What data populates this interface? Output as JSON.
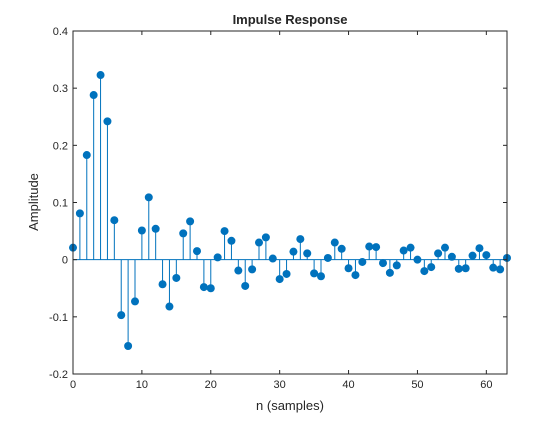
{
  "chart_data": {
    "type": "stem",
    "title": "Impulse Response",
    "xlabel": "n (samples)",
    "ylabel": "Amplitude",
    "xlim": [
      0,
      63
    ],
    "ylim": [
      -0.2,
      0.4
    ],
    "xticks": [
      0,
      10,
      20,
      30,
      40,
      50,
      60
    ],
    "yticks": [
      -0.2,
      -0.1,
      0,
      0.1,
      0.2,
      0.3,
      0.4
    ],
    "ytick_labels": [
      "-0.2",
      "-0.1",
      "0",
      "0.1",
      "0.2",
      "0.3",
      "0.4"
    ],
    "grid": false,
    "box": true,
    "color": "#0072BD",
    "baseline": 0,
    "x": [
      0,
      1,
      2,
      3,
      4,
      5,
      6,
      7,
      8,
      9,
      10,
      11,
      12,
      13,
      14,
      15,
      16,
      17,
      18,
      19,
      20,
      21,
      22,
      23,
      24,
      25,
      26,
      27,
      28,
      29,
      30,
      31,
      32,
      33,
      34,
      35,
      36,
      37,
      38,
      39,
      40,
      41,
      42,
      43,
      44,
      45,
      46,
      47,
      48,
      49,
      50,
      51,
      52,
      53,
      54,
      55,
      56,
      57,
      58,
      59,
      60,
      61,
      62,
      63
    ],
    "values": [
      0.021,
      0.081,
      0.183,
      0.288,
      0.323,
      0.242,
      0.069,
      -0.097,
      -0.151,
      -0.073,
      0.051,
      0.109,
      0.054,
      -0.043,
      -0.082,
      -0.032,
      0.046,
      0.067,
      0.015,
      -0.048,
      -0.05,
      0.004,
      0.05,
      0.033,
      -0.019,
      -0.046,
      -0.017,
      0.03,
      0.039,
      0.002,
      -0.034,
      -0.025,
      0.014,
      0.036,
      0.011,
      -0.024,
      -0.029,
      0.003,
      0.03,
      0.019,
      -0.015,
      -0.027,
      -0.004,
      0.023,
      0.022,
      -0.006,
      -0.023,
      -0.01,
      0.016,
      0.021,
      0.0,
      -0.02,
      -0.013,
      0.011,
      0.021,
      0.005,
      -0.016,
      -0.015,
      0.007,
      0.02,
      0.008,
      -0.014,
      -0.017,
      0.003
    ]
  }
}
